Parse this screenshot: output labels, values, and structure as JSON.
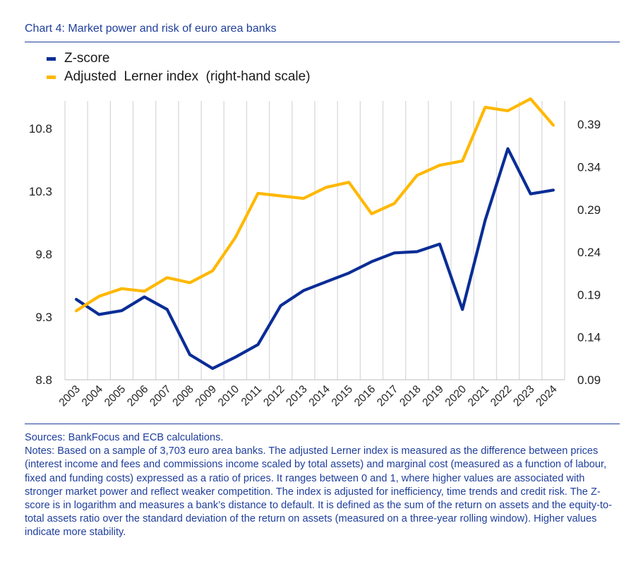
{
  "title": "Chart 4: Market power and risk of euro area banks",
  "colors": {
    "accent": "#1f3e9c",
    "zscore": "#0a2d96",
    "lerner": "#ffb800",
    "grid": "#d9d9d9"
  },
  "legend": [
    {
      "label": "Z-score",
      "color": "#0a2d96"
    },
    {
      "label": "Adjusted  Lerner index  (right-hand scale)",
      "color": "#ffb800"
    }
  ],
  "chart_data": {
    "type": "line",
    "categories": [
      "2003",
      "2004",
      "2005",
      "2006",
      "2007",
      "2008",
      "2009",
      "2010",
      "2011",
      "2012",
      "2013",
      "2014",
      "2015",
      "2016",
      "2017",
      "2018",
      "2019",
      "2020",
      "2021",
      "2022",
      "2023",
      "2024"
    ],
    "series": [
      {
        "name": "Z-score",
        "axis": "left",
        "values": [
          9.44,
          9.32,
          9.35,
          9.46,
          9.36,
          9.0,
          8.89,
          8.98,
          9.08,
          9.39,
          9.51,
          9.58,
          9.65,
          9.74,
          9.81,
          9.82,
          9.88,
          9.36,
          10.07,
          10.64,
          10.28,
          10.31
        ]
      },
      {
        "name": "Adjusted Lerner index (right-hand scale)",
        "axis": "right",
        "values": [
          0.171,
          0.188,
          0.197,
          0.194,
          0.21,
          0.204,
          0.218,
          0.257,
          0.309,
          0.306,
          0.303,
          0.316,
          0.322,
          0.285,
          0.297,
          0.33,
          0.342,
          0.347,
          0.41,
          0.406,
          0.42,
          0.389
        ]
      }
    ],
    "y_left": {
      "ticks": [
        "10.8",
        "10.3",
        "9.8",
        "9.3",
        "8.8"
      ],
      "tick_values": [
        10.8,
        10.3,
        9.8,
        9.3,
        8.8
      ],
      "range": [
        8.8,
        11.02
      ]
    },
    "y_right": {
      "ticks": [
        "0.39",
        "0.34",
        "0.29",
        "0.24",
        "0.19",
        "0.14",
        "0.09"
      ],
      "tick_values": [
        0.39,
        0.34,
        0.29,
        0.24,
        0.19,
        0.14,
        0.09
      ],
      "range": [
        0.09,
        0.4175
      ]
    },
    "grid": "vertical",
    "legend_position": "top-left"
  },
  "notes": {
    "sources": "Sources: BankFocus and ECB calculations.",
    "text": "Notes: Based on a sample of 3,703 euro area banks. The adjusted Lerner index is measured as the difference between prices (interest income and fees and commissions income scaled by total assets) and marginal cost (measured as a function of labour, fixed and funding costs) expressed as a ratio of prices. It ranges between 0 and 1, where higher values are associated with stronger market power and reflect weaker competition. The index is adjusted for inefficiency, time trends and credit risk. The Z-score is in logarithm and measures a bank’s distance to default. It is defined as the sum of the return on assets and the equity-to-total assets ratio over the standard deviation of the return on assets (measured on a three-year rolling window). Higher values indicate more stability."
  }
}
